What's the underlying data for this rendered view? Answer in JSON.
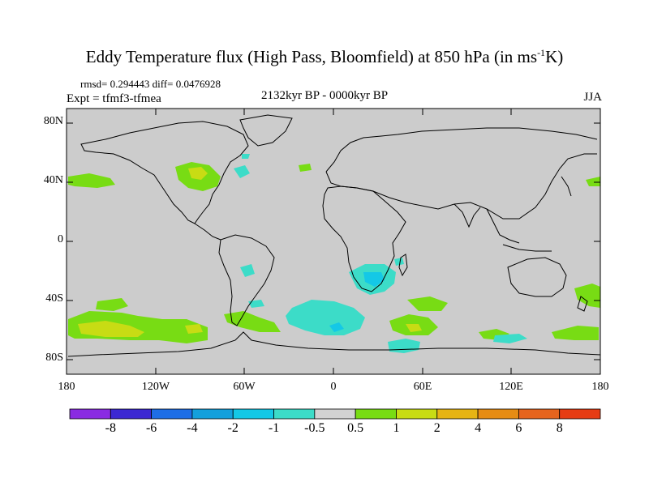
{
  "title": {
    "main": "Eddy Temperature flux (High Pass, Bloomfield) at 850 hPa (in ms",
    "sup": "-1",
    "end": "K)"
  },
  "stats": "rmsd= 0.294443 diff= 0.0476928",
  "experiment": "Expt = tfmf3-tfmea",
  "period": "2132kyr BP - 0000kyr BP",
  "season": "JJA",
  "map": {
    "projection": "cylindrical-equidistant",
    "lon_range": [
      -180,
      180
    ],
    "lat_range": [
      -90,
      90
    ],
    "background_color": "#cccccc",
    "coastline_color": "#000000",
    "lat_ticks": [
      "80N",
      "40N",
      "0",
      "40S",
      "80S"
    ],
    "lon_ticks": [
      "180",
      "120W",
      "60W",
      "0",
      "60E",
      "120E",
      "180"
    ]
  },
  "colorbar": {
    "labels": [
      "-8",
      "-6",
      "-4",
      "-2",
      "-1",
      "-0.5",
      "0.5",
      "1",
      "2",
      "4",
      "6",
      "8"
    ],
    "colors": [
      "#8a2be2",
      "#3c28d2",
      "#1e6ee6",
      "#14a0dc",
      "#14c8e6",
      "#3cdcc8",
      "#d2d2d2",
      "#78dc14",
      "#c8dc14",
      "#e6b414",
      "#e68c14",
      "#e6641e",
      "#e63c14"
    ]
  }
}
